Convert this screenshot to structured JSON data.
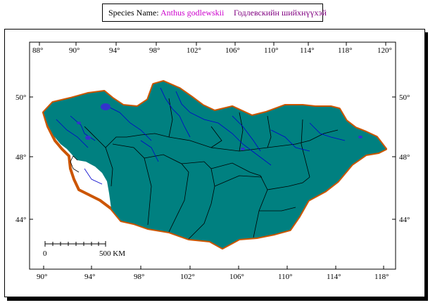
{
  "header": {
    "species_label": "Species Name:",
    "species_name": "Anthus godlewskii",
    "local_name": "Годлевскийн шийхнүүхэй"
  },
  "map": {
    "top_ticks": [
      "88°",
      "90°",
      "94°",
      "98°",
      "102°",
      "106°",
      "110°",
      "114°",
      "118°",
      "120°"
    ],
    "bottom_ticks": [
      "90°",
      "94°",
      "98°",
      "102°",
      "106°",
      "110°",
      "114°",
      "118°"
    ],
    "left_ticks": [
      "50°",
      "48°",
      "44°"
    ],
    "right_ticks": [
      "50°",
      "48°",
      "44°"
    ],
    "scale": {
      "start": "0",
      "end": "500 KM"
    },
    "colors": {
      "range_fill": "#008080",
      "border": "#cc5500",
      "rivers": "#0000cc",
      "lakes": "#3333cc"
    }
  }
}
